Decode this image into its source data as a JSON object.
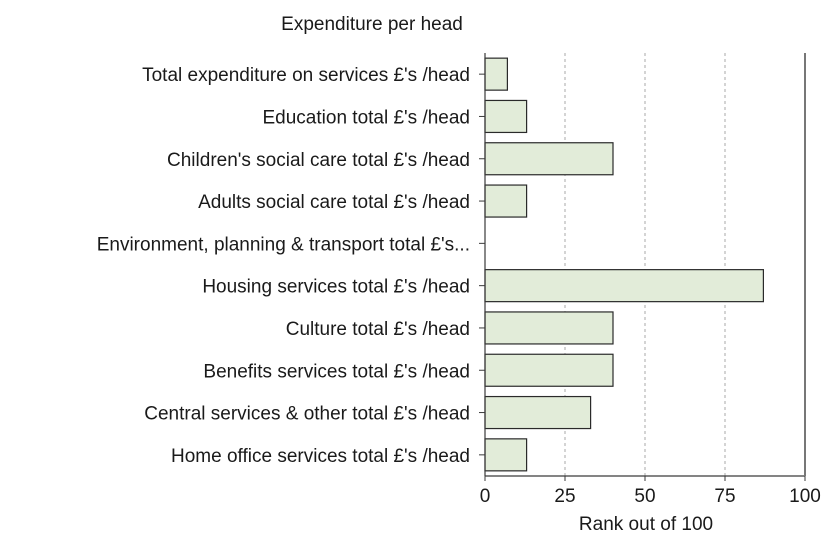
{
  "chart_data": {
    "type": "bar",
    "orientation": "horizontal",
    "title": "Expenditure per head",
    "xlabel": "Rank out of 100",
    "ylabel": "",
    "xlim": [
      0,
      100
    ],
    "xticks": [
      "0",
      "25",
      "50",
      "75",
      "100"
    ],
    "grid": "vertical dashed",
    "legend": "none",
    "colors": {
      "bar_fill": "#e2ecd9",
      "bar_stroke": "#2a2a2a",
      "grid": "#a9a9a9",
      "axis": "#3a3a3a"
    },
    "categories": [
      "Total expenditure on services £'s /head",
      "Education total £'s /head",
      "Children's social care total £'s /head",
      "Adults social care total £'s /head",
      "Environment, planning & transport  total £'s...",
      "Housing services total £'s /head",
      "Culture total £'s /head",
      "Benefits services total £'s /head",
      "Central services & other total £'s /head",
      "Home office services total £'s /head"
    ],
    "values": [
      7,
      13,
      40,
      13,
      0,
      87,
      40,
      40,
      33,
      13
    ]
  }
}
